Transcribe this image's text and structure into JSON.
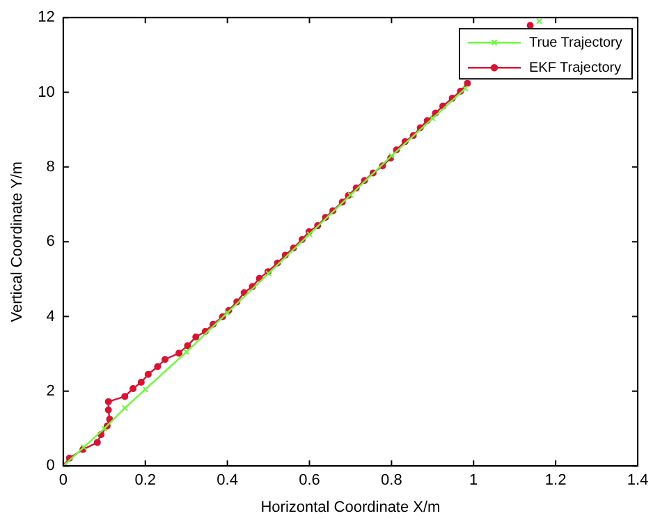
{
  "chart_data": {
    "type": "line",
    "xlabel": "Horizontal Coordinate X/m",
    "ylabel": "Vertical Coordinate Y/m",
    "xlim": [
      0,
      1.4
    ],
    "xticks": [
      0,
      0.2,
      0.4,
      0.6,
      0.8,
      1,
      1.2,
      1.4
    ],
    "ylim": [
      0,
      12
    ],
    "yticks": [
      0,
      2,
      4,
      6,
      8,
      10,
      12
    ],
    "grid": false,
    "legend": "top right",
    "line_style": "solid",
    "series": [
      {
        "name": "True Trajectory",
        "color": "#66ff33",
        "marker": "cross",
        "x": [
          0,
          0.05,
          0.1,
          0.15,
          0.2,
          0.3,
          0.4,
          0.5,
          0.6,
          0.7,
          0.8,
          0.9,
          0.98,
          1.1,
          1.16
        ],
        "values": [
          0,
          0.5,
          1.0,
          1.55,
          2.05,
          3.05,
          4.1,
          5.15,
          6.2,
          7.25,
          8.3,
          9.3,
          10.1,
          null,
          11.9
        ]
      },
      {
        "name": "EKF Trajectory",
        "color": "#dd1133",
        "marker": "circle",
        "x": [
          0,
          0.015,
          0.048,
          0.083,
          0.092,
          0.107,
          0.113,
          0.11,
          0.11,
          0.15,
          0.17,
          0.19,
          0.207,
          0.23,
          0.248,
          0.282,
          0.303,
          0.323,
          0.346,
          0.365,
          0.388,
          0.403,
          0.423,
          0.441,
          0.461,
          0.478,
          0.499,
          0.522,
          0.541,
          0.561,
          0.582,
          0.599,
          0.62,
          0.639,
          0.657,
          0.68,
          0.695,
          0.714,
          0.734,
          0.755,
          0.778,
          0.798,
          0.812,
          0.833,
          0.853,
          0.87,
          0.887,
          0.907,
          0.925,
          0.948,
          0.968,
          0.985,
          1.06,
          1.138
        ],
        "values": [
          0,
          0.21,
          0.44,
          0.63,
          0.84,
          1.07,
          1.25,
          1.5,
          1.72,
          1.86,
          2.07,
          2.24,
          2.45,
          2.66,
          2.85,
          3.02,
          3.22,
          3.45,
          3.6,
          3.79,
          3.99,
          4.16,
          4.39,
          4.64,
          4.8,
          5.02,
          5.2,
          5.43,
          5.64,
          5.83,
          6.06,
          6.27,
          6.43,
          6.65,
          6.83,
          7.06,
          7.24,
          7.44,
          7.64,
          7.84,
          8.03,
          8.24,
          8.46,
          8.68,
          8.84,
          9.05,
          9.24,
          9.44,
          9.63,
          9.84,
          10.03,
          10.24,
          null,
          11.79
        ]
      }
    ]
  }
}
